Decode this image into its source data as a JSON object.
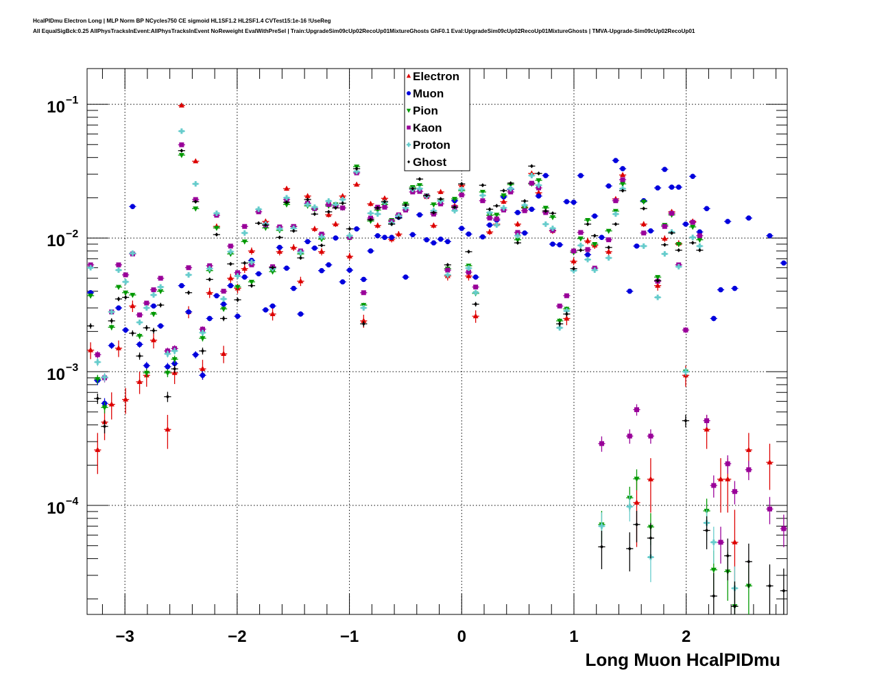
{
  "header": {
    "title_line1": "HcalPIDmu Electron Long | MLP Norm BP NCycles750 CE sigmoid HL1SF1.2 HL2SF1.4 CVTest15:1e-16 !UseReg",
    "title_line2": "All EqualSigBck:0.25 AllPhysTracksInEvent:AllPhysTracksInEvent NoReweight EvalWithPreSel | Train:UpgradeSim09cUp02RecoUp01MixtureGhosts GhF0.1 Eval:UpgradeSim09cUp02RecoUp01MixtureGhosts | TMVA-Upgrade-Sim09cUp02RecoUp01"
  },
  "chart_data": {
    "type": "scatter",
    "title": "",
    "xlabel": "Long Muon HcalPIDmu",
    "ylabel": "",
    "y_scale": "log",
    "xlim": [
      -3.337,
      2.9
    ],
    "ylim": [
      1.53e-05,
      0.185
    ],
    "nbins": 100,
    "grid": true,
    "legend_position": "top-center",
    "x_ticks": [
      -3,
      -2,
      -1,
      0,
      1,
      2
    ],
    "x_tick_labels": [
      "−3",
      "−2",
      "−1",
      "0",
      "1",
      "2"
    ],
    "y_ticks": [
      0.1,
      0.01,
      0.001,
      0.0001
    ],
    "y_tick_labels": [
      {
        "base": "10",
        "exp": "−1"
      },
      {
        "base": "10",
        "exp": "−2"
      },
      {
        "base": "10",
        "exp": "−3"
      },
      {
        "base": "10",
        "exp": "−4"
      }
    ],
    "series": [
      {
        "name": "Electron",
        "color": "#dd0000",
        "marker": "triangle-up",
        "values": [
          0.00145,
          0.00026,
          0.00042,
          0.00057,
          0.0015,
          0.00062,
          0.0031,
          0.00084,
          0.00094,
          0.00172,
          null,
          0.00037,
          0.00098,
          0.098,
          0.0028,
          0.0375,
          0.00105,
          0.0039,
          0.0122,
          0.00136,
          0.005,
          0.0042,
          0.0059,
          0.008,
          null,
          0.0133,
          0.0027,
          0.0079,
          0.0234,
          0.0085,
          0.00475,
          0.0206,
          0.0117,
          0.0079,
          0.0149,
          0.0127,
          0.0206,
          0.0073,
          0.0251,
          0.0024,
          0.018,
          0.0124,
          0.0198,
          0.0098,
          0.0107,
          null,
          null,
          null,
          0.0203,
          0.0124,
          0.0221,
          0.0052,
          0.0174,
          0.0248,
          0.0052,
          0.0026,
          null,
          0.0111,
          0.0127,
          0.0187,
          null,
          0.0127,
          0.017,
          0.0304,
          0.0218,
          null,
          0.0113,
          null,
          0.0025,
          0.0067,
          null,
          0.0095,
          0.0088,
          null,
          0.0079,
          0.0196,
          0.0296,
          null,
          0.000105,
          0.0127,
          0.000157,
          0.0044,
          0.0099,
          0.0157,
          0.0091,
          0.00094,
          0.0133,
          null,
          0.00037,
          null,
          0.000157,
          0.000157,
          5.3e-05,
          null,
          0.00026,
          null,
          null,
          0.00021,
          null,
          null
        ]
      },
      {
        "name": "Muon",
        "color": "#0000dd",
        "marker": "circle",
        "values": [
          0.0039,
          0.00086,
          0.00058,
          0.00157,
          0.003,
          0.00205,
          0.0172,
          0.0016,
          0.00111,
          0.0031,
          0.0022,
          0.00109,
          0.00115,
          0.0044,
          0.0028,
          0.00134,
          0.00094,
          0.0025,
          0.0037,
          0.0032,
          0.0044,
          0.0026,
          0.0051,
          0.0068,
          0.0054,
          0.0029,
          0.0031,
          0.0085,
          0.00595,
          0.0042,
          0.0027,
          0.0094,
          0.0084,
          0.0057,
          0.0063,
          0.01,
          0.0047,
          0.00575,
          0.0117,
          0.0049,
          0.008,
          0.0104,
          0.0101,
          0.0101,
          0.0143,
          0.0051,
          0.0106,
          0.0149,
          0.0097,
          0.0092,
          0.0098,
          0.0094,
          0.019,
          0.0118,
          0.0107,
          0.0051,
          0.0102,
          0.0125,
          0.0136,
          0.0203,
          0.0231,
          0.0155,
          0.0109,
          0.0164,
          0.0206,
          0.0293,
          0.009,
          0.0089,
          0.0187,
          0.0185,
          0.0293,
          0.0075,
          0.0146,
          0.0101,
          0.0245,
          0.038,
          0.033,
          0.004,
          0.0087,
          0.019,
          0.0113,
          0.0237,
          0.0326,
          0.024,
          0.024,
          0.0127,
          0.0289,
          0.0111,
          0.0166,
          0.0025,
          0.0041,
          0.0133,
          0.0042,
          null,
          0.0141,
          null,
          null,
          0.0104,
          null,
          0.0065
        ]
      },
      {
        "name": "Pion",
        "color": "#009900",
        "marker": "triangle-down",
        "values": [
          0.0037,
          0.00088,
          0.00054,
          0.00215,
          0.0043,
          0.0039,
          0.00375,
          0.00185,
          0.00098,
          0.0027,
          0.004,
          0.00098,
          0.00124,
          0.0417,
          null,
          0.0166,
          0.00178,
          0.0057,
          0.0119,
          0.00295,
          0.0076,
          0.0043,
          0.0094,
          0.0047,
          null,
          0.0119,
          0.0056,
          0.0114,
          0.0178,
          0.0122,
          0.0076,
          0.0174,
          0.0164,
          0.0098,
          0.0174,
          0.0178,
          0.0168,
          0.01,
          0.0342,
          0.00315,
          0.0134,
          0.0162,
          0.0178,
          0.0136,
          0.0148,
          0.018,
          0.024,
          0.0248,
          0.0208,
          0.0178,
          0.019,
          0.0059,
          0.0196,
          0.0226,
          0.0062,
          0.00385,
          0.0221,
          0.0148,
          0.0149,
          0.0208,
          0.0251,
          0.0097,
          0.0168,
          0.0254,
          0.027,
          0.0168,
          0.0143,
          0.0024,
          0.00295,
          0.0078,
          0.0099,
          0.0136,
          0.009,
          7.2e-05,
          0.0113,
          0.0159,
          0.0254,
          0.000114,
          0.000158,
          0.0187,
          6.9e-05,
          0.0051,
          0.0125,
          0.0149,
          0.009,
          0.001,
          0.0121,
          0.0097,
          9.1e-05,
          3.3e-05,
          null,
          3.2e-05,
          1.76e-05,
          null,
          2.5e-05,
          null,
          null,
          null,
          null,
          null
        ]
      },
      {
        "name": "Kaon",
        "color": "#990099",
        "marker": "square",
        "values": [
          0.0063,
          0.00134,
          0.0009,
          0.0028,
          0.0063,
          0.0053,
          0.0076,
          0.00266,
          0.00326,
          0.0041,
          0.005,
          0.00143,
          0.00149,
          0.0498,
          0.006,
          0.0194,
          0.00208,
          0.0062,
          0.0148,
          0.004,
          0.0087,
          0.0055,
          0.0122,
          0.0063,
          0.0157,
          0.0125,
          0.0061,
          0.0121,
          0.0194,
          0.0122,
          0.008,
          0.0182,
          0.0166,
          0.0107,
          0.0178,
          0.0174,
          0.0168,
          0.0101,
          0.0307,
          0.0039,
          0.0141,
          0.017,
          0.017,
          0.0133,
          0.0149,
          0.0162,
          0.0221,
          0.0223,
          0.0206,
          0.0151,
          0.018,
          0.00575,
          0.017,
          0.021,
          0.00555,
          0.0043,
          0.019,
          0.0141,
          0.0139,
          0.0162,
          0.0221,
          0.011,
          0.016,
          0.0257,
          0.0237,
          0.0155,
          0.0114,
          0.0031,
          0.0037,
          0.008,
          0.011,
          0.0082,
          0.00595,
          0.00029,
          0.0097,
          0.019,
          0.0273,
          0.00033,
          0.00052,
          0.0109,
          0.00033,
          0.00475,
          0.0122,
          0.0153,
          0.0063,
          0.00205,
          0.0131,
          0.0104,
          0.00043,
          0.000141,
          5.3e-05,
          0.000205,
          0.000127,
          null,
          0.000185,
          null,
          null,
          9.4e-05,
          null,
          6.7e-05
        ]
      },
      {
        "name": "Proton",
        "color": "#66cccc",
        "marker": "cross",
        "values": [
          0.006,
          0.00118,
          0.00091,
          0.0028,
          0.00575,
          0.0047,
          0.0077,
          0.00234,
          0.003,
          0.00375,
          0.0043,
          0.00136,
          0.00143,
          0.063,
          0.0053,
          0.0254,
          0.00196,
          0.0059,
          0.0153,
          0.0035,
          0.0079,
          0.0052,
          0.0109,
          0.0066,
          0.0164,
          0.0127,
          0.0059,
          0.0117,
          0.02,
          0.0118,
          0.0078,
          0.0178,
          0.017,
          0.0102,
          0.0189,
          0.0178,
          0.0194,
          0.0104,
          0.0314,
          0.003,
          0.0153,
          0.0151,
          0.0185,
          0.0129,
          0.0146,
          0.0168,
          0.0231,
          0.0234,
          0.0206,
          0.016,
          0.0189,
          0.0053,
          0.016,
          0.0231,
          0.00595,
          0.0039,
          0.0208,
          0.0155,
          0.0125,
          0.0168,
          0.0234,
          0.0104,
          0.0176,
          0.0293,
          0.0248,
          0.0127,
          0.0118,
          0.00213,
          0.00285,
          0.0057,
          0.0088,
          0.0069,
          0.00575,
          7e-05,
          0.0071,
          0.0151,
          0.0234,
          9.8e-05,
          null,
          0.0087,
          4.1e-05,
          0.0036,
          0.0076,
          0.0111,
          0.0061,
          0.001,
          0.0101,
          0.0087,
          7.4e-05,
          5.3e-05,
          null,
          null,
          2.4e-05,
          null,
          null,
          null,
          null,
          null,
          null,
          null
        ]
      },
      {
        "name": "Ghost",
        "color": "#000000",
        "marker": "diamond",
        "values": [
          0.0022,
          0.00063,
          0.00039,
          0.0024,
          0.0035,
          0.0036,
          0.00194,
          0.00131,
          0.00213,
          0.00203,
          0.00315,
          0.00065,
          0.00105,
          0.045,
          0.0039,
          0.0187,
          0.00143,
          0.0049,
          0.0106,
          0.0025,
          0.0064,
          0.00345,
          0.0065,
          0.0044,
          0.0129,
          0.0125,
          0.006,
          0.0101,
          0.0185,
          0.0113,
          0.0071,
          0.0194,
          0.0151,
          0.0088,
          0.0157,
          0.0168,
          0.0182,
          0.0117,
          0.033,
          0.00228,
          0.0137,
          0.0168,
          0.0187,
          0.0127,
          0.0141,
          0.0176,
          0.0234,
          0.0276,
          0.0208,
          0.0155,
          0.0196,
          0.0063,
          0.017,
          0.0254,
          0.0079,
          0.0032,
          0.0248,
          0.0164,
          0.0174,
          0.0226,
          0.0257,
          0.0092,
          0.0189,
          0.0345,
          0.0304,
          0.0159,
          0.0153,
          0.00228,
          0.0027,
          0.0059,
          0.0081,
          0.0127,
          0.0104,
          4.9e-05,
          0.0085,
          0.0127,
          0.0226,
          4.75e-05,
          7.2e-05,
          0.0166,
          5.7e-05,
          0.0048,
          0.0089,
          0.0109,
          0.0081,
          0.00043,
          0.0092,
          0.0081,
          6.5e-05,
          2.1e-05,
          null,
          4.2e-05,
          1.76e-05,
          null,
          3.8e-05,
          null,
          null,
          2.5e-05,
          null,
          2.3e-05
        ]
      }
    ]
  }
}
